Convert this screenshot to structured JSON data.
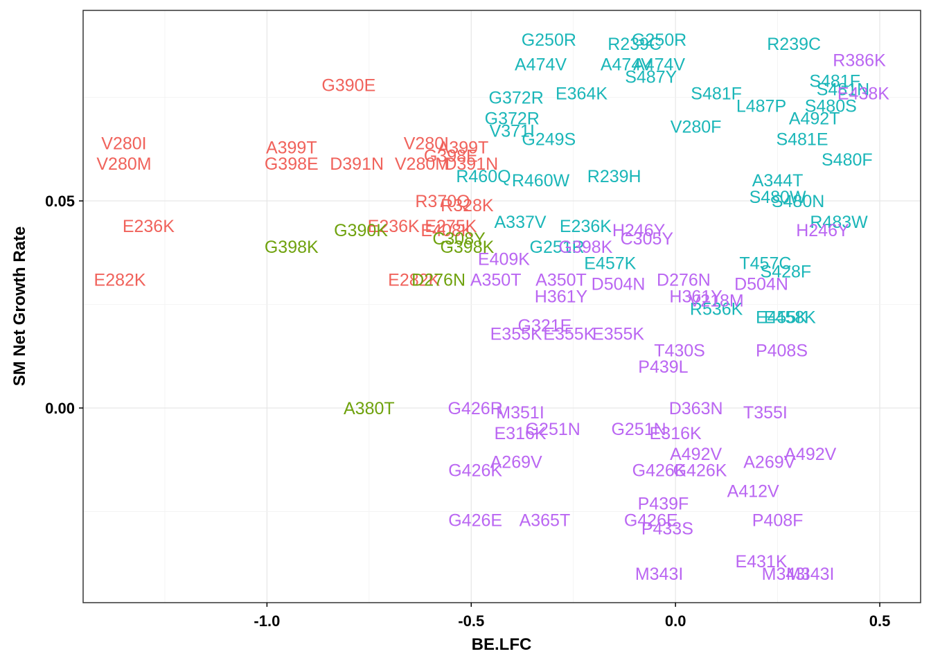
{
  "colors": {
    "cluster1": "#F0625B",
    "cluster2": "#6FA20E",
    "cluster3": "#1AB6B8",
    "cluster4": "#BA66F2",
    "axis": "#000000",
    "grid": "#e6e6e6",
    "panel_border": "#333333"
  },
  "chart_data": {
    "type": "scatter",
    "title": "",
    "xlabel": "BE.LFC",
    "ylabel": "SM Net Growth Rate",
    "xlim": [
      -1.45,
      0.6
    ],
    "ylim": [
      -0.047,
      0.096
    ],
    "x_ticks": [
      -1.0,
      -0.5,
      0.0,
      0.5
    ],
    "x_tick_labels": [
      "-1.0",
      "-0.5",
      "0.0",
      "0.5"
    ],
    "y_ticks": [
      0.0,
      0.05
    ],
    "y_tick_labels": [
      "0.00",
      "0.05"
    ],
    "grid": true,
    "legend": "none",
    "series": [
      {
        "name": "cluster1",
        "color_key": "cluster1",
        "points": [
          {
            "label": "G390E",
            "x": -0.8,
            "y": 0.078
          },
          {
            "label": "V280I",
            "x": -1.35,
            "y": 0.064
          },
          {
            "label": "V280M",
            "x": -1.35,
            "y": 0.059
          },
          {
            "label": "A399T",
            "x": -0.94,
            "y": 0.063
          },
          {
            "label": "G398E",
            "x": -0.94,
            "y": 0.059
          },
          {
            "label": "D391N",
            "x": -0.78,
            "y": 0.059
          },
          {
            "label": "V280I",
            "x": -0.61,
            "y": 0.064
          },
          {
            "label": "A399T",
            "x": -0.52,
            "y": 0.063
          },
          {
            "label": "G398E",
            "x": -0.55,
            "y": 0.061
          },
          {
            "label": "V280M",
            "x": -0.62,
            "y": 0.059
          },
          {
            "label": "D391N",
            "x": -0.5,
            "y": 0.059
          },
          {
            "label": "R370Q",
            "x": -0.57,
            "y": 0.05
          },
          {
            "label": "R328K",
            "x": -0.51,
            "y": 0.049
          },
          {
            "label": "E236K",
            "x": -1.29,
            "y": 0.044
          },
          {
            "label": "E236K",
            "x": -0.69,
            "y": 0.044
          },
          {
            "label": "E275K",
            "x": -0.55,
            "y": 0.044
          },
          {
            "label": "E408K",
            "x": -0.56,
            "y": 0.043
          },
          {
            "label": "E282K",
            "x": -1.36,
            "y": 0.031
          },
          {
            "label": "E282K",
            "x": -0.64,
            "y": 0.031
          }
        ]
      },
      {
        "name": "cluster2",
        "color_key": "cluster2",
        "points": [
          {
            "label": "G390K",
            "x": -0.77,
            "y": 0.043
          },
          {
            "label": "G398K",
            "x": -0.94,
            "y": 0.039
          },
          {
            "label": "C308Y",
            "x": -0.53,
            "y": 0.041
          },
          {
            "label": "G398K",
            "x": -0.51,
            "y": 0.039
          },
          {
            "label": "D276N",
            "x": -0.58,
            "y": 0.031
          },
          {
            "label": "A380T",
            "x": -0.75,
            "y": 0.0
          }
        ]
      },
      {
        "name": "cluster3",
        "color_key": "cluster3",
        "points": [
          {
            "label": "G250R",
            "x": -0.31,
            "y": 0.089
          },
          {
            "label": "R239C",
            "x": -0.1,
            "y": 0.088
          },
          {
            "label": "G250R",
            "x": -0.04,
            "y": 0.089
          },
          {
            "label": "R239C",
            "x": 0.29,
            "y": 0.088
          },
          {
            "label": "A474V",
            "x": -0.33,
            "y": 0.083
          },
          {
            "label": "A474V",
            "x": -0.12,
            "y": 0.083
          },
          {
            "label": "A474V",
            "x": -0.04,
            "y": 0.083
          },
          {
            "label": "S481F",
            "x": 0.39,
            "y": 0.079
          },
          {
            "label": "S481N",
            "x": 0.41,
            "y": 0.077
          },
          {
            "label": "G372R",
            "x": -0.39,
            "y": 0.075
          },
          {
            "label": "E364K",
            "x": -0.23,
            "y": 0.076
          },
          {
            "label": "S487Y",
            "x": -0.06,
            "y": 0.08
          },
          {
            "label": "S481F",
            "x": 0.1,
            "y": 0.076
          },
          {
            "label": "L487P",
            "x": 0.21,
            "y": 0.073
          },
          {
            "label": "S480S",
            "x": 0.38,
            "y": 0.073
          },
          {
            "label": "A492T",
            "x": 0.34,
            "y": 0.07
          },
          {
            "label": "G372R",
            "x": -0.4,
            "y": 0.07
          },
          {
            "label": "V371I",
            "x": -0.4,
            "y": 0.067
          },
          {
            "label": "G249S",
            "x": -0.31,
            "y": 0.065
          },
          {
            "label": "V280F",
            "x": 0.05,
            "y": 0.068
          },
          {
            "label": "S481E",
            "x": 0.31,
            "y": 0.065
          },
          {
            "label": "S480F",
            "x": 0.42,
            "y": 0.06
          },
          {
            "label": "R460Q",
            "x": -0.47,
            "y": 0.056
          },
          {
            "label": "R460W",
            "x": -0.33,
            "y": 0.055
          },
          {
            "label": "R239H",
            "x": -0.15,
            "y": 0.056
          },
          {
            "label": "A344T",
            "x": 0.25,
            "y": 0.055
          },
          {
            "label": "S480W",
            "x": 0.25,
            "y": 0.051
          },
          {
            "label": "S480N",
            "x": 0.3,
            "y": 0.05
          },
          {
            "label": "A337V",
            "x": -0.38,
            "y": 0.045
          },
          {
            "label": "E236K",
            "x": -0.22,
            "y": 0.044
          },
          {
            "label": "R483W",
            "x": 0.4,
            "y": 0.045
          },
          {
            "label": "G251R",
            "x": -0.29,
            "y": 0.039
          },
          {
            "label": "E457K",
            "x": -0.16,
            "y": 0.035
          },
          {
            "label": "T457C",
            "x": 0.22,
            "y": 0.035
          },
          {
            "label": "S428F",
            "x": 0.27,
            "y": 0.033
          },
          {
            "label": "R536K",
            "x": 0.1,
            "y": 0.024
          },
          {
            "label": "E455K",
            "x": 0.26,
            "y": 0.022
          },
          {
            "label": "E458K",
            "x": 0.28,
            "y": 0.022
          }
        ]
      },
      {
        "name": "cluster4",
        "color_key": "cluster4",
        "points": [
          {
            "label": "R386K",
            "x": 0.45,
            "y": 0.084
          },
          {
            "label": "E438K",
            "x": 0.46,
            "y": 0.076
          },
          {
            "label": "H246Y",
            "x": -0.09,
            "y": 0.043
          },
          {
            "label": "H246Y",
            "x": 0.36,
            "y": 0.043
          },
          {
            "label": "C305Y",
            "x": -0.07,
            "y": 0.041
          },
          {
            "label": "G398K",
            "x": -0.22,
            "y": 0.039
          },
          {
            "label": "E409K",
            "x": -0.42,
            "y": 0.036
          },
          {
            "label": "A350T",
            "x": -0.44,
            "y": 0.031
          },
          {
            "label": "A350T",
            "x": -0.28,
            "y": 0.031
          },
          {
            "label": "D504N",
            "x": -0.14,
            "y": 0.03
          },
          {
            "label": "D276N",
            "x": 0.02,
            "y": 0.031
          },
          {
            "label": "D504N",
            "x": 0.21,
            "y": 0.03
          },
          {
            "label": "H361Y",
            "x": -0.28,
            "y": 0.027
          },
          {
            "label": "H361Y",
            "x": 0.05,
            "y": 0.027
          },
          {
            "label": "V218M",
            "x": 0.1,
            "y": 0.026
          },
          {
            "label": "G321E",
            "x": -0.32,
            "y": 0.02
          },
          {
            "label": "E355K",
            "x": -0.39,
            "y": 0.018
          },
          {
            "label": "E355K",
            "x": -0.26,
            "y": 0.018
          },
          {
            "label": "E355K",
            "x": -0.14,
            "y": 0.018
          },
          {
            "label": "T430S",
            "x": 0.01,
            "y": 0.014
          },
          {
            "label": "P408S",
            "x": 0.26,
            "y": 0.014
          },
          {
            "label": "P439L",
            "x": -0.03,
            "y": 0.01
          },
          {
            "label": "G426R",
            "x": -0.49,
            "y": 0.0
          },
          {
            "label": "M351I",
            "x": -0.38,
            "y": -0.001
          },
          {
            "label": "D363N",
            "x": 0.05,
            "y": 0.0
          },
          {
            "label": "T355I",
            "x": 0.22,
            "y": -0.001
          },
          {
            "label": "G251N",
            "x": -0.3,
            "y": -0.005
          },
          {
            "label": "E316K",
            "x": -0.38,
            "y": -0.006
          },
          {
            "label": "G251N",
            "x": -0.09,
            "y": -0.005
          },
          {
            "label": "E316K",
            "x": 0.0,
            "y": -0.006
          },
          {
            "label": "A269V",
            "x": -0.39,
            "y": -0.013
          },
          {
            "label": "G426K",
            "x": -0.49,
            "y": -0.015
          },
          {
            "label": "A492V",
            "x": 0.05,
            "y": -0.011
          },
          {
            "label": "A269V",
            "x": 0.23,
            "y": -0.013
          },
          {
            "label": "A492V",
            "x": 0.33,
            "y": -0.011
          },
          {
            "label": "G426K",
            "x": -0.04,
            "y": -0.015
          },
          {
            "label": "G426K",
            "x": 0.06,
            "y": -0.015
          },
          {
            "label": "A412V",
            "x": 0.19,
            "y": -0.02
          },
          {
            "label": "P439F",
            "x": -0.03,
            "y": -0.023
          },
          {
            "label": "G426E",
            "x": -0.49,
            "y": -0.027
          },
          {
            "label": "A365T",
            "x": -0.32,
            "y": -0.027
          },
          {
            "label": "G426E",
            "x": -0.06,
            "y": -0.027
          },
          {
            "label": "P408F",
            "x": 0.25,
            "y": -0.027
          },
          {
            "label": "P433S",
            "x": -0.02,
            "y": -0.029
          },
          {
            "label": "E431K",
            "x": 0.21,
            "y": -0.037
          },
          {
            "label": "M343I",
            "x": -0.04,
            "y": -0.04
          },
          {
            "label": "M343I",
            "x": 0.27,
            "y": -0.04
          },
          {
            "label": "M343I",
            "x": 0.33,
            "y": -0.04
          }
        ]
      }
    ]
  }
}
